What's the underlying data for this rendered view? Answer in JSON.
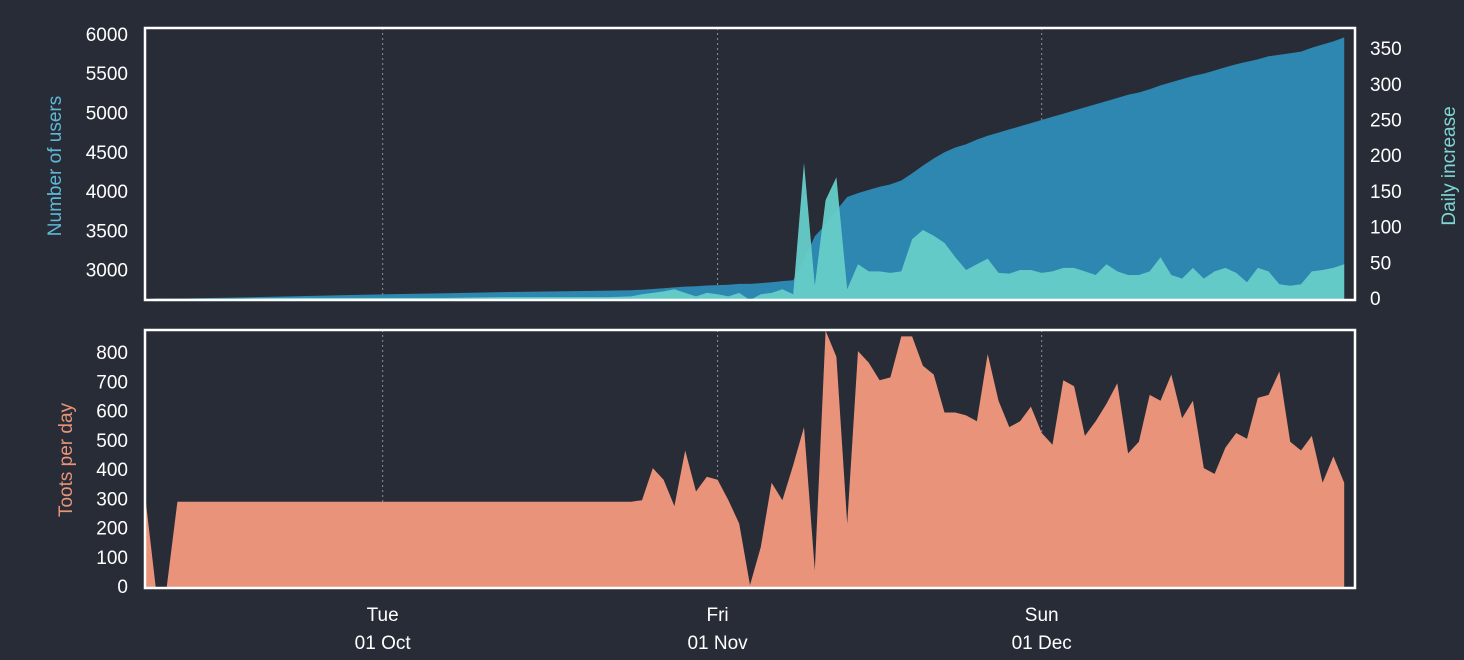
{
  "chart_data": [
    {
      "type": "area",
      "ylabel": "Number of users",
      "y2label": "Daily increase",
      "x": [
        "09 Sep",
        "10 Sep",
        "11 Sep",
        "12 Sep",
        "17 Sep",
        "22 Sep",
        "27 Sep",
        "02 Oct",
        "07 Oct",
        "12 Oct",
        "17 Oct",
        "22 Oct",
        "24 Oct",
        "25 Oct",
        "26 Oct",
        "27 Oct",
        "28 Oct",
        "29 Oct",
        "30 Oct",
        "31 Oct",
        "01 Nov",
        "02 Nov",
        "03 Nov",
        "04 Nov",
        "05 Nov",
        "06 Nov",
        "07 Nov",
        "08 Nov",
        "09 Nov",
        "10 Nov",
        "11 Nov",
        "12 Nov",
        "13 Nov",
        "14 Nov",
        "15 Nov",
        "16 Nov",
        "17 Nov",
        "18 Nov",
        "19 Nov",
        "20 Nov",
        "21 Nov",
        "22 Nov",
        "23 Nov",
        "24 Nov",
        "25 Nov",
        "26 Nov",
        "27 Nov",
        "28 Nov",
        "29 Nov",
        "30 Nov",
        "01 Dec",
        "02 Dec",
        "03 Dec",
        "04 Dec",
        "05 Dec",
        "06 Dec",
        "07 Dec",
        "08 Dec",
        "09 Dec",
        "10 Dec",
        "11 Dec",
        "12 Dec",
        "13 Dec",
        "14 Dec",
        "15 Dec",
        "16 Dec",
        "17 Dec",
        "18 Dec",
        "19 Dec",
        "20 Dec",
        "21 Dec",
        "22 Dec",
        "23 Dec",
        "24 Dec",
        "25 Dec",
        "26 Dec",
        "27 Dec",
        "28 Dec",
        "29 Dec"
      ],
      "xlim": [
        "09 Sep",
        "30 Dec"
      ],
      "xticks": [
        "01 Oct",
        "01 Nov",
        "01 Dec"
      ],
      "ylim": [
        2640,
        6100
      ],
      "yticks": [
        3000,
        3500,
        4000,
        4500,
        5000,
        5500,
        6000
      ],
      "y2lim": [
        0,
        381
      ],
      "y2ticks": [
        0,
        50,
        100,
        150,
        200,
        250,
        300,
        350
      ],
      "series": [
        {
          "name": "Number of users",
          "color": "#2e87b0",
          "axis": "y",
          "values": [
            2650,
            2652,
            2655,
            2658,
            2670,
            2685,
            2700,
            2715,
            2725,
            2740,
            2750,
            2760,
            2765,
            2770,
            2780,
            2790,
            2800,
            2810,
            2815,
            2825,
            2830,
            2835,
            2845,
            2845,
            2855,
            2865,
            2880,
            2890,
            3150,
            3450,
            3600,
            3780,
            3950,
            4000,
            4040,
            4080,
            4110,
            4160,
            4250,
            4350,
            4440,
            4520,
            4580,
            4620,
            4680,
            4730,
            4770,
            4810,
            4850,
            4890,
            4930,
            4970,
            5010,
            5050,
            5090,
            5130,
            5170,
            5210,
            5250,
            5280,
            5320,
            5370,
            5410,
            5450,
            5490,
            5520,
            5560,
            5600,
            5640,
            5670,
            5700,
            5740,
            5760,
            5780,
            5800,
            5850,
            5890,
            5930,
            5980
          ]
        },
        {
          "name": "Daily increase",
          "color": "#66cdc9",
          "axis": "y2",
          "values": [
            1,
            2,
            2,
            2,
            2,
            3,
            3,
            3,
            3,
            4,
            4,
            4,
            5,
            8,
            10,
            12,
            15,
            10,
            5,
            10,
            8,
            5,
            10,
            0,
            8,
            10,
            15,
            8,
            192,
            20,
            140,
            172,
            15,
            50,
            40,
            40,
            38,
            40,
            85,
            98,
            90,
            80,
            60,
            42,
            50,
            58,
            38,
            37,
            42,
            42,
            38,
            40,
            45,
            45,
            40,
            35,
            50,
            40,
            35,
            35,
            40,
            60,
            35,
            30,
            45,
            30,
            40,
            45,
            38,
            25,
            45,
            40,
            22,
            20,
            22,
            40,
            42,
            45,
            50
          ]
        }
      ]
    },
    {
      "type": "area",
      "ylabel": "Toots per day",
      "x": [
        "09 Sep",
        "10 Sep",
        "11 Sep",
        "12 Sep",
        "17 Sep",
        "22 Sep",
        "27 Sep",
        "02 Oct",
        "07 Oct",
        "12 Oct",
        "17 Oct",
        "22 Oct",
        "24 Oct",
        "25 Oct",
        "26 Oct",
        "27 Oct",
        "28 Oct",
        "29 Oct",
        "30 Oct",
        "31 Oct",
        "01 Nov",
        "02 Nov",
        "03 Nov",
        "04 Nov",
        "05 Nov",
        "06 Nov",
        "07 Nov",
        "08 Nov",
        "09 Nov",
        "10 Nov",
        "11 Nov",
        "12 Nov",
        "13 Nov",
        "14 Nov",
        "15 Nov",
        "16 Nov",
        "17 Nov",
        "18 Nov",
        "19 Nov",
        "20 Nov",
        "21 Nov",
        "22 Nov",
        "23 Nov",
        "24 Nov",
        "25 Nov",
        "26 Nov",
        "27 Nov",
        "28 Nov",
        "29 Nov",
        "30 Nov",
        "01 Dec",
        "02 Dec",
        "03 Dec",
        "04 Dec",
        "05 Dec",
        "06 Dec",
        "07 Dec",
        "08 Dec",
        "09 Dec",
        "10 Dec",
        "11 Dec",
        "12 Dec",
        "13 Dec",
        "14 Dec",
        "15 Dec",
        "16 Dec",
        "17 Dec",
        "18 Dec",
        "19 Dec",
        "20 Dec",
        "21 Dec",
        "22 Dec",
        "23 Dec",
        "24 Dec",
        "25 Dec",
        "26 Dec",
        "27 Dec",
        "28 Dec",
        "29 Dec"
      ],
      "xlim": [
        "09 Sep",
        "30 Dec"
      ],
      "xticks": [
        "01 Oct",
        "01 Nov",
        "01 Dec"
      ],
      "xtick_weekdays": [
        "Tue",
        "Fri",
        "Sun"
      ],
      "ylim": [
        0,
        882
      ],
      "yticks": [
        0,
        100,
        200,
        300,
        400,
        500,
        600,
        700,
        800
      ],
      "series": [
        {
          "name": "Toots per day",
          "color": "#e8937a",
          "values": [
            320,
            0,
            0,
            295,
            295,
            295,
            295,
            295,
            295,
            295,
            295,
            295,
            295,
            300,
            410,
            370,
            280,
            470,
            330,
            380,
            370,
            300,
            220,
            10,
            140,
            360,
            300,
            420,
            550,
            60,
            880,
            790,
            220,
            810,
            770,
            710,
            720,
            860,
            860,
            760,
            730,
            600,
            600,
            590,
            570,
            800,
            640,
            550,
            570,
            620,
            530,
            490,
            710,
            690,
            520,
            570,
            630,
            700,
            460,
            500,
            660,
            640,
            730,
            580,
            640,
            410,
            390,
            480,
            530,
            510,
            650,
            660,
            740,
            500,
            470,
            520,
            360,
            450,
            360
          ]
        }
      ]
    }
  ]
}
